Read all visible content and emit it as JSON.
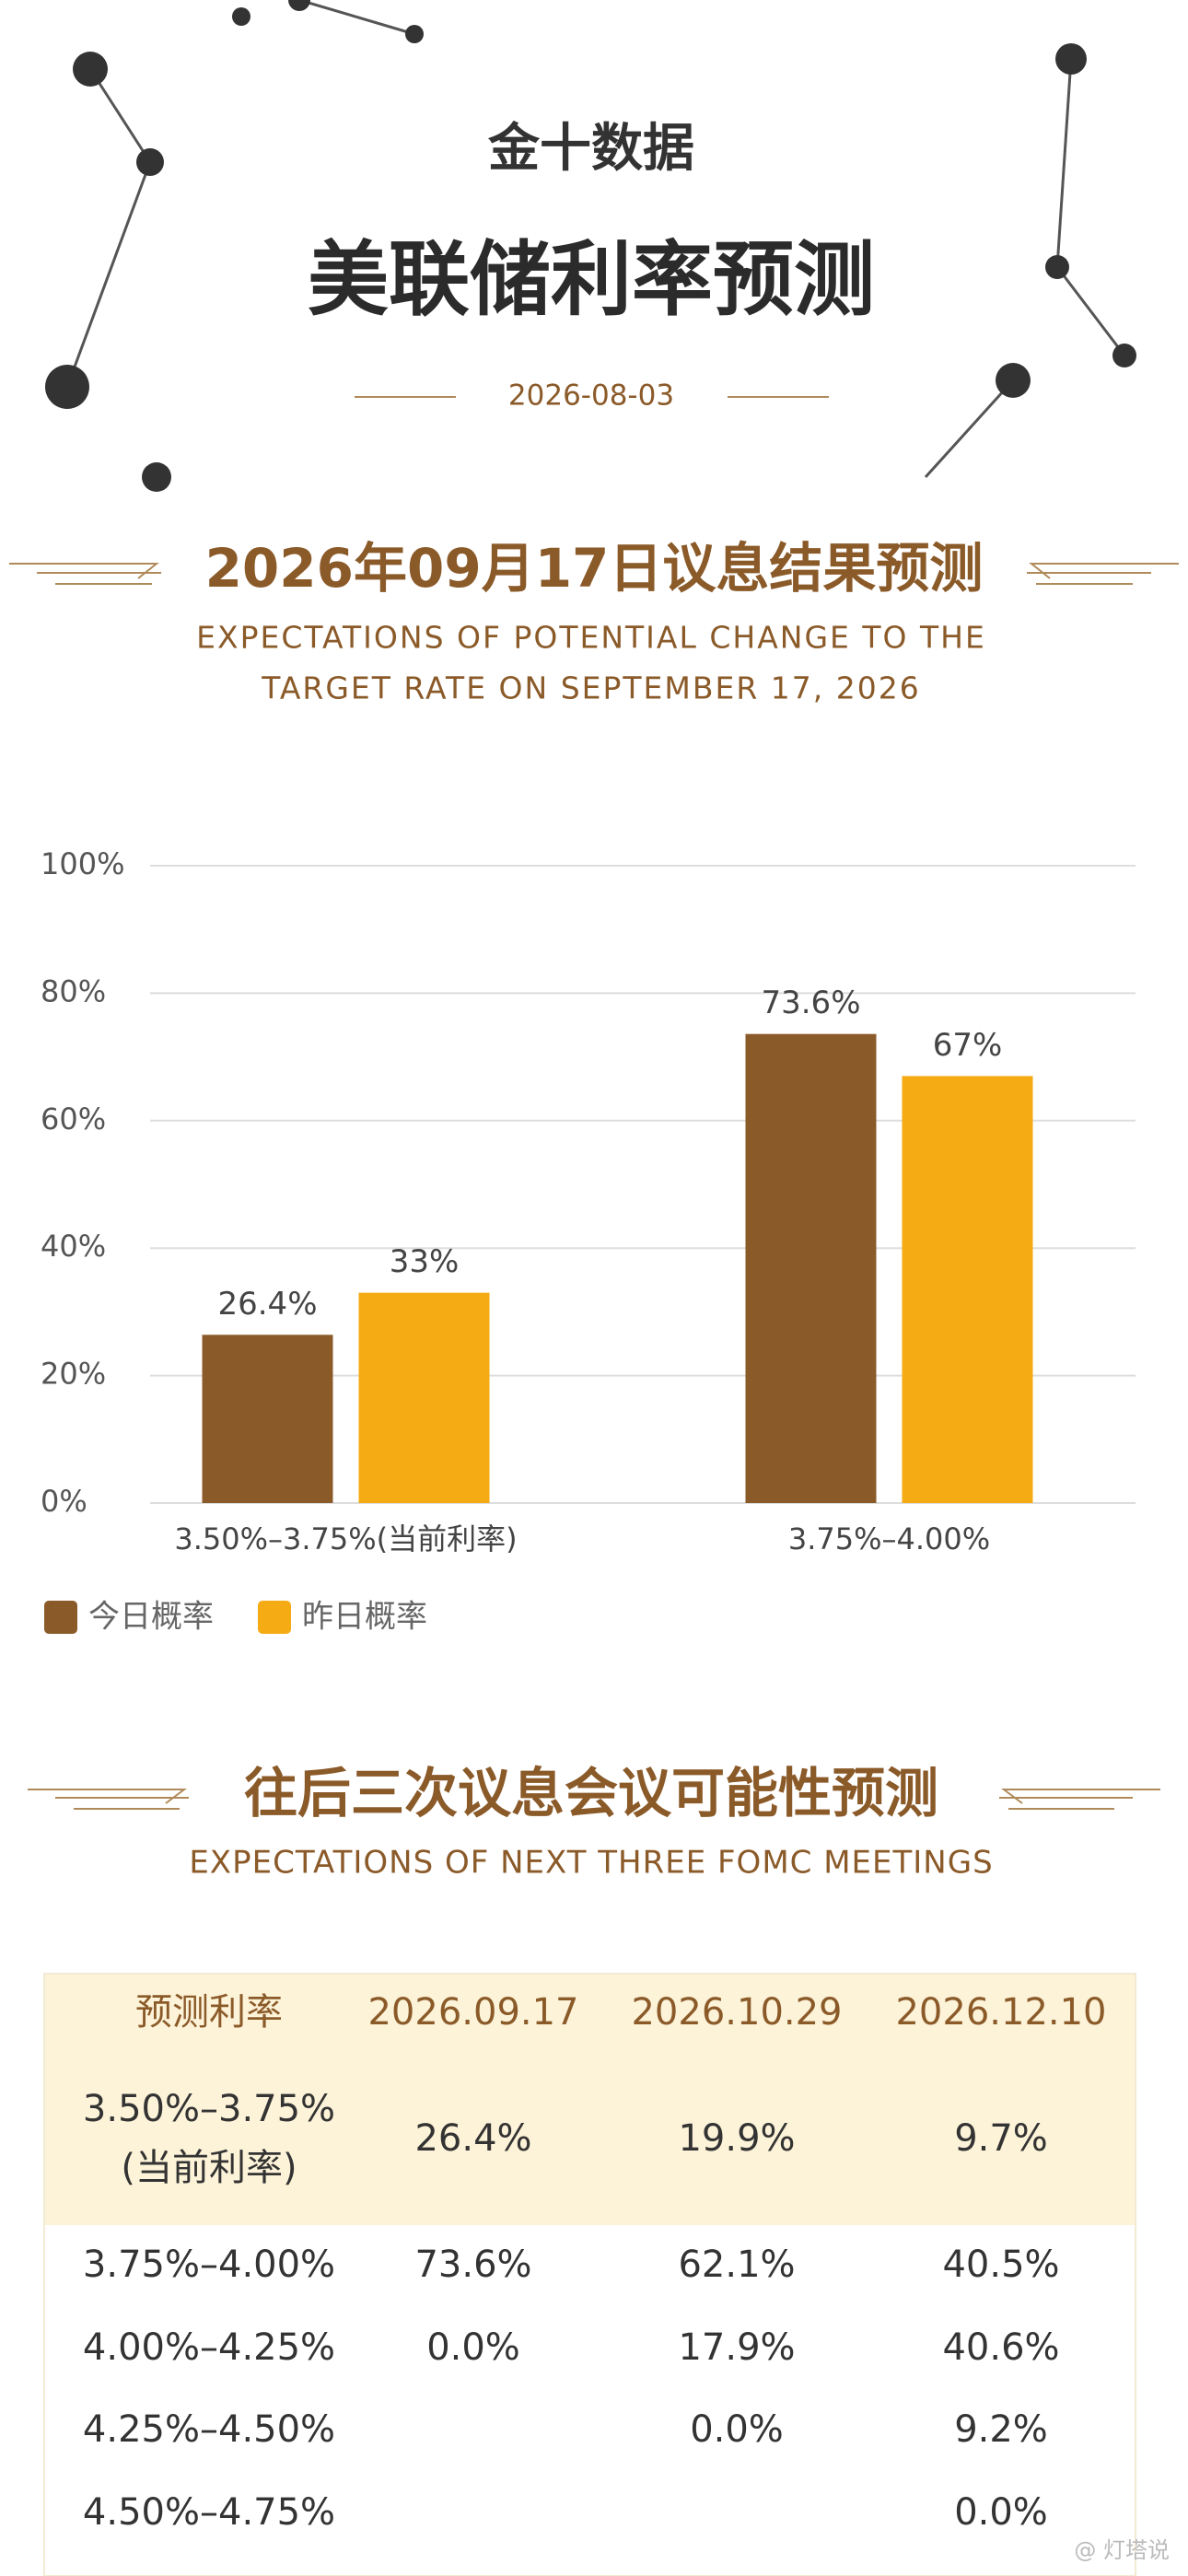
{
  "header": {
    "brand": "金十数据",
    "title": "美联储利率预测",
    "date": "2026-08-03"
  },
  "chart_data": {
    "type": "bar",
    "title": "2026年09月17日议息结果预测",
    "subtitle": [
      "EXPECTATIONS OF POTENTIAL CHANGE TO THE",
      "TARGET RATE ON SEPTEMBER 17, 2026"
    ],
    "categories": [
      "3.50%–3.75%(当前利率)",
      "3.75%–4.00%"
    ],
    "series": [
      {
        "name": "今日概率",
        "color": "#8b5a29",
        "values": [
          26.4,
          73.6
        ],
        "value_labels": [
          "26.4%",
          "73.6%"
        ]
      },
      {
        "name": "昨日概率",
        "color": "#f5ab13",
        "values": [
          33,
          67
        ],
        "value_labels": [
          "33%",
          "67%"
        ]
      }
    ],
    "ylim": [
      0,
      100
    ],
    "yticks": [
      {
        "value": 0,
        "label": "0%"
      },
      {
        "value": 20,
        "label": "20%"
      },
      {
        "value": 40,
        "label": "40%"
      },
      {
        "value": 60,
        "label": "60%"
      },
      {
        "value": 80,
        "label": "80%"
      },
      {
        "value": 100,
        "label": "100%"
      }
    ],
    "grid": true,
    "legend": "bottom-left"
  },
  "meetings": {
    "title": "往后三次议息会议可能性预测",
    "subtitle": "EXPECTATIONS OF NEXT THREE FOMC MEETINGS"
  },
  "table": {
    "header": [
      "预测利率",
      "2026.09.17",
      "2026.10.29",
      "2026.12.10"
    ],
    "rows": [
      {
        "rate": "3.50%–3.75%",
        "note": "(当前利率)",
        "cells": [
          "26.4%",
          "19.9%",
          "9.7%"
        ]
      },
      {
        "rate": "3.75%–4.00%",
        "cells": [
          "73.6%",
          "62.1%",
          "40.5%"
        ]
      },
      {
        "rate": "4.00%–4.25%",
        "cells": [
          "0.0%",
          "17.9%",
          "40.6%"
        ]
      },
      {
        "rate": "4.25%–4.50%",
        "cells": [
          null,
          "0.0%",
          "9.2%"
        ]
      },
      {
        "rate": "4.50%–4.75%",
        "cells": [
          null,
          null,
          "0.0%"
        ]
      }
    ]
  },
  "watermark": "@ 灯塔说"
}
